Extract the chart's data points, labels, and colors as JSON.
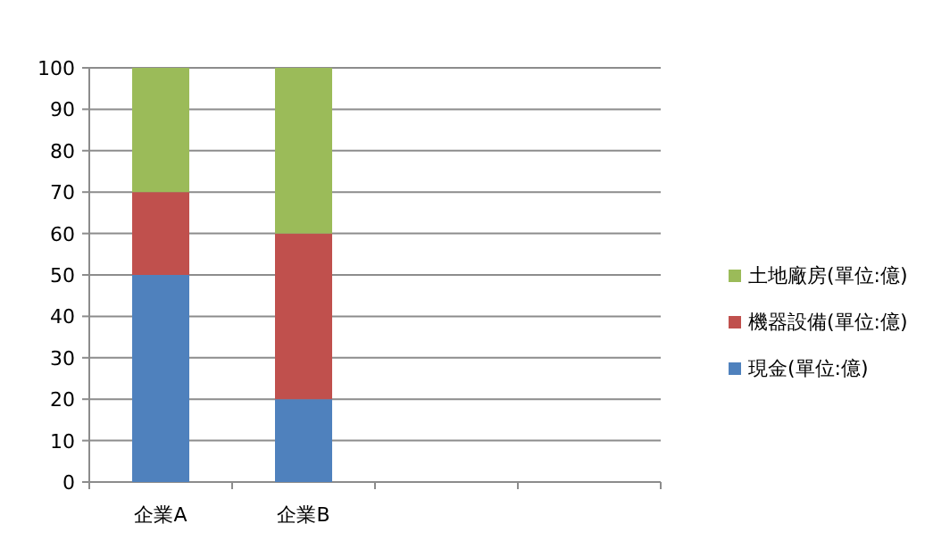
{
  "chart_data": {
    "type": "bar",
    "stacked": true,
    "categories": [
      "企業A",
      "企業B",
      null,
      null
    ],
    "series": [
      {
        "name": "現金(單位:億)",
        "color": "#4f81bd",
        "values": [
          50,
          20,
          null,
          null
        ]
      },
      {
        "name": "機器設備(單位:億)",
        "color": "#c0504d",
        "values": [
          20,
          40,
          null,
          null
        ]
      },
      {
        "name": "土地廠房(單位:億)",
        "color": "#9bbb59",
        "values": [
          30,
          40,
          null,
          null
        ]
      }
    ],
    "ylim": [
      0,
      100
    ],
    "yticks": [
      0,
      10,
      20,
      30,
      40,
      50,
      60,
      70,
      80,
      90,
      100
    ],
    "grid": "y",
    "legend": "right"
  }
}
